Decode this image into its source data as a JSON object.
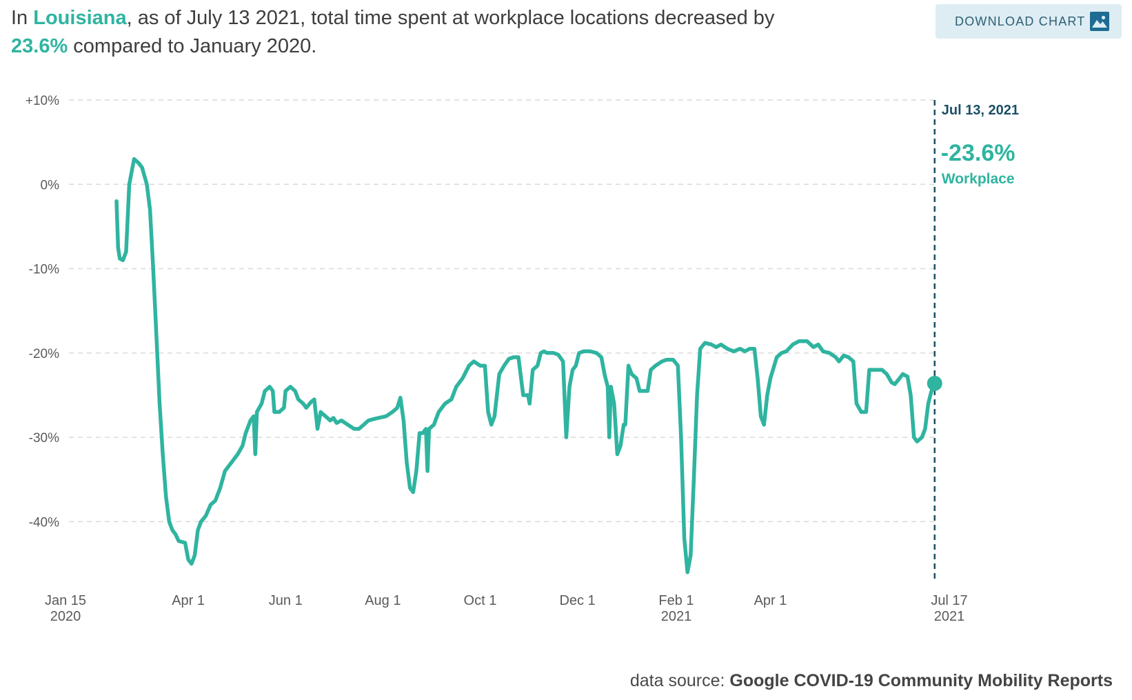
{
  "headline": {
    "p1": "In ",
    "region": "Louisiana",
    "p2": ", as of July 13 2021, total time spent at workplace locations decreased by ",
    "value": "23.6%",
    "p3": " compared to January 2020."
  },
  "download": {
    "label": "DOWNLOAD CHART",
    "icon": "image-icon"
  },
  "source": {
    "prefix": "data source: ",
    "name": "Google COVID-19 Community Mobility Reports"
  },
  "colors": {
    "line": "#2fb4a0",
    "marker": "#1b4f66",
    "grid": "#d9d9d9"
  },
  "chart_data": {
    "type": "line",
    "series": [
      {
        "name": "Workplace",
        "points": [
          [
            "2020-02-16",
            -2
          ],
          [
            "2020-02-17",
            -7.5
          ],
          [
            "2020-02-18",
            -8.8
          ],
          [
            "2020-02-20",
            -9
          ],
          [
            "2020-02-22",
            -8
          ],
          [
            "2020-02-24",
            0
          ],
          [
            "2020-02-27",
            3
          ],
          [
            "2020-03-01",
            2.5
          ],
          [
            "2020-03-03",
            2
          ],
          [
            "2020-03-06",
            0
          ],
          [
            "2020-03-08",
            -3
          ],
          [
            "2020-03-10",
            -10
          ],
          [
            "2020-03-12",
            -18
          ],
          [
            "2020-03-14",
            -26
          ],
          [
            "2020-03-16",
            -32
          ],
          [
            "2020-03-18",
            -37
          ],
          [
            "2020-03-20",
            -40
          ],
          [
            "2020-03-22",
            -41
          ],
          [
            "2020-03-24",
            -41.5
          ],
          [
            "2020-03-26",
            -42.3
          ],
          [
            "2020-03-30",
            -42.5
          ],
          [
            "2020-04-01",
            -44.5
          ],
          [
            "2020-04-03",
            -45
          ],
          [
            "2020-04-05",
            -44
          ],
          [
            "2020-04-07",
            -41
          ],
          [
            "2020-04-09",
            -40
          ],
          [
            "2020-04-12",
            -39.3
          ],
          [
            "2020-04-15",
            -38
          ],
          [
            "2020-04-18",
            -37.5
          ],
          [
            "2020-04-21",
            -36
          ],
          [
            "2020-04-24",
            -34
          ],
          [
            "2020-04-28",
            -33
          ],
          [
            "2020-05-02",
            -32
          ],
          [
            "2020-05-05",
            -31
          ],
          [
            "2020-05-07",
            -29.5
          ],
          [
            "2020-05-10",
            -28
          ],
          [
            "2020-05-12",
            -27.5
          ],
          [
            "2020-05-13",
            -32
          ],
          [
            "2020-05-14",
            -27
          ],
          [
            "2020-05-17",
            -26
          ],
          [
            "2020-05-19",
            -24.5
          ],
          [
            "2020-05-22",
            -24
          ],
          [
            "2020-05-24",
            -24.5
          ],
          [
            "2020-05-25",
            -27
          ],
          [
            "2020-05-28",
            -27
          ],
          [
            "2020-05-31",
            -26.5
          ],
          [
            "2020-06-01",
            -24.5
          ],
          [
            "2020-06-04",
            -24
          ],
          [
            "2020-06-07",
            -24.5
          ],
          [
            "2020-06-09",
            -25.5
          ],
          [
            "2020-06-12",
            -26
          ],
          [
            "2020-06-14",
            -26.5
          ],
          [
            "2020-06-17",
            -25.8
          ],
          [
            "2020-06-19",
            -25.5
          ],
          [
            "2020-06-21",
            -29
          ],
          [
            "2020-06-23",
            -27
          ],
          [
            "2020-06-26",
            -27.5
          ],
          [
            "2020-06-29",
            -28
          ],
          [
            "2020-07-01",
            -27.7
          ],
          [
            "2020-07-03",
            -28.3
          ],
          [
            "2020-07-06",
            -28
          ],
          [
            "2020-07-10",
            -28.5
          ],
          [
            "2020-07-14",
            -29
          ],
          [
            "2020-07-17",
            -29
          ],
          [
            "2020-07-20",
            -28.5
          ],
          [
            "2020-07-23",
            -28
          ],
          [
            "2020-07-27",
            -27.8
          ],
          [
            "2020-08-03",
            -27.5
          ],
          [
            "2020-08-07",
            -27
          ],
          [
            "2020-08-10",
            -26.5
          ],
          [
            "2020-08-12",
            -25.3
          ],
          [
            "2020-08-14",
            -28
          ],
          [
            "2020-08-16",
            -33
          ],
          [
            "2020-08-18",
            -36
          ],
          [
            "2020-08-20",
            -36.5
          ],
          [
            "2020-08-22",
            -34
          ],
          [
            "2020-08-24",
            -29.5
          ],
          [
            "2020-08-26",
            -29.5
          ],
          [
            "2020-08-28",
            -29
          ],
          [
            "2020-08-29",
            -34
          ],
          [
            "2020-08-30",
            -29
          ],
          [
            "2020-09-02",
            -28.5
          ],
          [
            "2020-09-05",
            -27
          ],
          [
            "2020-09-09",
            -26
          ],
          [
            "2020-09-13",
            -25.5
          ],
          [
            "2020-09-16",
            -24
          ],
          [
            "2020-09-20",
            -23
          ],
          [
            "2020-09-24",
            -21.5
          ],
          [
            "2020-09-27",
            -21
          ],
          [
            "2020-10-01",
            -21.5
          ],
          [
            "2020-10-04",
            -21.5
          ],
          [
            "2020-10-06",
            -27
          ],
          [
            "2020-10-08",
            -28.5
          ],
          [
            "2020-10-10",
            -27.5
          ],
          [
            "2020-10-13",
            -22.5
          ],
          [
            "2020-10-16",
            -21.5
          ],
          [
            "2020-10-19",
            -20.7
          ],
          [
            "2020-10-22",
            -20.5
          ],
          [
            "2020-10-25",
            -20.5
          ],
          [
            "2020-10-28",
            -25
          ],
          [
            "2020-10-31",
            -25
          ],
          [
            "2020-11-01",
            -26
          ],
          [
            "2020-11-03",
            -22
          ],
          [
            "2020-11-06",
            -21.5
          ],
          [
            "2020-11-08",
            -20
          ],
          [
            "2020-11-10",
            -19.8
          ],
          [
            "2020-11-12",
            -20
          ],
          [
            "2020-11-16",
            -20
          ],
          [
            "2020-11-19",
            -20.2
          ],
          [
            "2020-11-22",
            -21
          ],
          [
            "2020-11-24",
            -30
          ],
          [
            "2020-11-26",
            -24
          ],
          [
            "2020-11-28",
            -22
          ],
          [
            "2020-11-30",
            -21.5
          ],
          [
            "2020-12-02",
            -20
          ],
          [
            "2020-12-05",
            -19.8
          ],
          [
            "2020-12-09",
            -19.8
          ],
          [
            "2020-12-13",
            -20
          ],
          [
            "2020-12-16",
            -20.5
          ],
          [
            "2020-12-18",
            -22.5
          ],
          [
            "2020-12-20",
            -24
          ],
          [
            "2020-12-21",
            -30
          ],
          [
            "2020-12-22",
            -24
          ],
          [
            "2020-12-24",
            -26
          ],
          [
            "2020-12-26",
            -32
          ],
          [
            "2020-12-28",
            -31
          ],
          [
            "2020-12-30",
            -28.5
          ],
          [
            "2020-12-31",
            -28.5
          ],
          [
            "2021-01-02",
            -21.5
          ],
          [
            "2021-01-04",
            -22.5
          ],
          [
            "2021-01-07",
            -23
          ],
          [
            "2021-01-09",
            -24.5
          ],
          [
            "2021-01-12",
            -24.5
          ],
          [
            "2021-01-14",
            -24.5
          ],
          [
            "2021-01-16",
            -22
          ],
          [
            "2021-01-19",
            -21.5
          ],
          [
            "2021-01-23",
            -21
          ],
          [
            "2021-01-26",
            -20.8
          ],
          [
            "2021-01-30",
            -20.8
          ],
          [
            "2021-02-02",
            -21.5
          ],
          [
            "2021-02-04",
            -30
          ],
          [
            "2021-02-06",
            -42
          ],
          [
            "2021-02-08",
            -46
          ],
          [
            "2021-02-10",
            -44
          ],
          [
            "2021-02-12",
            -35
          ],
          [
            "2021-02-14",
            -25
          ],
          [
            "2021-02-16",
            -19.5
          ],
          [
            "2021-02-19",
            -18.8
          ],
          [
            "2021-02-23",
            -19
          ],
          [
            "2021-02-26",
            -19.3
          ],
          [
            "2021-03-01",
            -19
          ],
          [
            "2021-03-05",
            -19.5
          ],
          [
            "2021-03-09",
            -19.8
          ],
          [
            "2021-03-13",
            -19.5
          ],
          [
            "2021-03-16",
            -19.8
          ],
          [
            "2021-03-19",
            -19.5
          ],
          [
            "2021-03-22",
            -19.5
          ],
          [
            "2021-03-24",
            -23
          ],
          [
            "2021-03-26",
            -27.5
          ],
          [
            "2021-03-28",
            -28.5
          ],
          [
            "2021-03-30",
            -25
          ],
          [
            "2021-04-01",
            -23
          ],
          [
            "2021-04-05",
            -20.5
          ],
          [
            "2021-04-08",
            -20
          ],
          [
            "2021-04-11",
            -19.8
          ],
          [
            "2021-04-15",
            -19
          ],
          [
            "2021-04-19",
            -18.6
          ],
          [
            "2021-04-24",
            -18.6
          ],
          [
            "2021-04-28",
            -19.3
          ],
          [
            "2021-05-01",
            -19
          ],
          [
            "2021-05-04",
            -19.8
          ],
          [
            "2021-05-08",
            -20
          ],
          [
            "2021-05-12",
            -20.5
          ],
          [
            "2021-05-14",
            -21
          ],
          [
            "2021-05-17",
            -20.3
          ],
          [
            "2021-05-20",
            -20.5
          ],
          [
            "2021-05-23",
            -21
          ],
          [
            "2021-05-25",
            -26
          ],
          [
            "2021-05-28",
            -27
          ],
          [
            "2021-05-31",
            -27
          ],
          [
            "2021-06-02",
            -22
          ],
          [
            "2021-06-06",
            -22
          ],
          [
            "2021-06-10",
            -22
          ],
          [
            "2021-06-13",
            -22.5
          ],
          [
            "2021-06-16",
            -23.5
          ],
          [
            "2021-06-18",
            -23.7
          ],
          [
            "2021-06-21",
            -23
          ],
          [
            "2021-06-23",
            -22.5
          ],
          [
            "2021-06-26",
            -22.8
          ],
          [
            "2021-06-28",
            -25
          ],
          [
            "2021-06-30",
            -30
          ],
          [
            "2021-07-02",
            -30.5
          ],
          [
            "2021-07-05",
            -30
          ],
          [
            "2021-07-07",
            -29
          ],
          [
            "2021-07-09",
            -26
          ],
          [
            "2021-07-11",
            -24.5
          ],
          [
            "2021-07-13",
            -23.6
          ]
        ]
      }
    ],
    "ylim": [
      -47,
      10
    ],
    "xlim": [
      "2020-01-15",
      "2021-07-17"
    ],
    "y_ticks": [
      10,
      0,
      -10,
      -20,
      -30,
      -40
    ],
    "y_tick_labels": [
      "+10%",
      "0%",
      "-10%",
      "-20%",
      "-30%",
      "-40%"
    ],
    "x_ticks": [
      {
        "date": "2020-01-15",
        "label": "Jan 15",
        "sub": "2020"
      },
      {
        "date": "2020-04-01",
        "label": "Apr 1",
        "sub": ""
      },
      {
        "date": "2020-06-01",
        "label": "Jun 1",
        "sub": ""
      },
      {
        "date": "2020-08-01",
        "label": "Aug 1",
        "sub": ""
      },
      {
        "date": "2020-10-01",
        "label": "Oct 1",
        "sub": ""
      },
      {
        "date": "2020-12-01",
        "label": "Dec 1",
        "sub": ""
      },
      {
        "date": "2021-02-01",
        "label": "Feb 1",
        "sub": "2021"
      },
      {
        "date": "2021-04-01",
        "label": "Apr 1",
        "sub": ""
      },
      {
        "date": "2021-07-17",
        "label": "Jul 17",
        "sub": "2021"
      }
    ],
    "grid": true,
    "annotation": {
      "date": "2021-07-13",
      "date_label": "Jul 13, 2021",
      "value": -23.6,
      "value_label": "-23.6%",
      "series_label": "Workplace"
    }
  }
}
